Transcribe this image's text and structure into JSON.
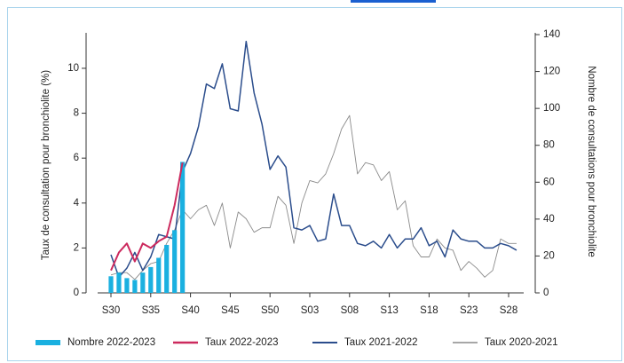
{
  "chart_data": {
    "type": "bar-line",
    "y_label": "Taux de consultation pour bronchiolite (%)",
    "y2_label": "Nombre de consultations pour bronchiolite",
    "categories": [
      "S30",
      null,
      null,
      null,
      null,
      "S35",
      null,
      null,
      null,
      null,
      "S40",
      null,
      null,
      null,
      null,
      "S45",
      null,
      null,
      null,
      null,
      "S50",
      null,
      null,
      null,
      null,
      "S03",
      null,
      null,
      null,
      null,
      "S08",
      null,
      null,
      null,
      null,
      "S13",
      null,
      null,
      null,
      null,
      "S18",
      null,
      null,
      null,
      null,
      "S23",
      null,
      null,
      null,
      null,
      "S28",
      null
    ],
    "ylim": [
      0,
      11.5
    ],
    "yticks": [
      0,
      2,
      4,
      6,
      8,
      10
    ],
    "y2lim": [
      0,
      140
    ],
    "y2ticks": [
      0,
      20,
      40,
      60,
      80,
      100,
      120,
      140
    ],
    "series": [
      {
        "name": "Nombre 2022-2023",
        "type": "bar",
        "axis": "y2",
        "color": "#1ab0e0",
        "values": [
          9,
          11,
          8,
          7,
          11,
          14,
          19,
          26,
          34,
          71,
          null,
          null,
          null,
          null,
          null,
          null,
          null,
          null,
          null,
          null,
          null,
          null,
          null,
          null,
          null,
          null,
          null,
          null,
          null,
          null,
          null,
          null,
          null,
          null,
          null,
          null,
          null,
          null,
          null,
          null,
          null,
          null,
          null,
          null,
          null,
          null,
          null,
          null,
          null,
          null,
          null,
          null
        ]
      },
      {
        "name": "Taux 2022-2023",
        "type": "line",
        "color": "#cc2a5e",
        "width": 2,
        "values": [
          1.0,
          1.8,
          2.2,
          1.4,
          2.2,
          2.0,
          2.3,
          2.5,
          3.9,
          5.8,
          null,
          null,
          null,
          null,
          null,
          null,
          null,
          null,
          null,
          null,
          null,
          null,
          null,
          null,
          null,
          null,
          null,
          null,
          null,
          null,
          null,
          null,
          null,
          null,
          null,
          null,
          null,
          null,
          null,
          null,
          null,
          null,
          null,
          null,
          null,
          null,
          null,
          null,
          null,
          null,
          null,
          null
        ]
      },
      {
        "name": "Taux 2021-2022",
        "type": "line",
        "color": "#2b4d8c",
        "width": 1.5,
        "values": [
          1.7,
          0.7,
          1.1,
          1.8,
          1.0,
          1.6,
          2.6,
          2.5,
          2.4,
          5.4,
          6.2,
          7.4,
          9.3,
          9.1,
          10.2,
          8.2,
          8.1,
          11.2,
          8.9,
          7.5,
          5.5,
          6.1,
          5.6,
          2.9,
          2.8,
          3.0,
          2.3,
          2.4,
          4.4,
          3.0,
          3.0,
          2.2,
          2.1,
          2.3,
          2.0,
          2.6,
          2.0,
          2.4,
          2.4,
          2.9,
          2.1,
          2.3,
          1.6,
          2.8,
          2.4,
          2.3,
          2.3,
          2.0,
          2.0,
          2.2,
          2.1,
          1.9
        ]
      },
      {
        "name": "Taux 2020-2021",
        "type": "line",
        "color": "#8a8a8a",
        "width": 0.9,
        "values": [
          0.8,
          0.9,
          0.9,
          0.6,
          1.0,
          1.3,
          1.4,
          2.2,
          2.8,
          3.7,
          3.3,
          3.7,
          3.9,
          3.0,
          4.0,
          2.0,
          3.6,
          3.3,
          2.7,
          2.9,
          2.9,
          4.3,
          3.9,
          2.2,
          4.0,
          5.0,
          4.9,
          5.3,
          6.2,
          7.3,
          7.9,
          5.3,
          5.8,
          5.7,
          5.0,
          5.4,
          3.7,
          4.1,
          2.1,
          1.6,
          1.6,
          2.4,
          2.0,
          1.9,
          1.0,
          1.4,
          1.1,
          0.7,
          1.0,
          2.4,
          2.2,
          2.2
        ]
      }
    ]
  }
}
